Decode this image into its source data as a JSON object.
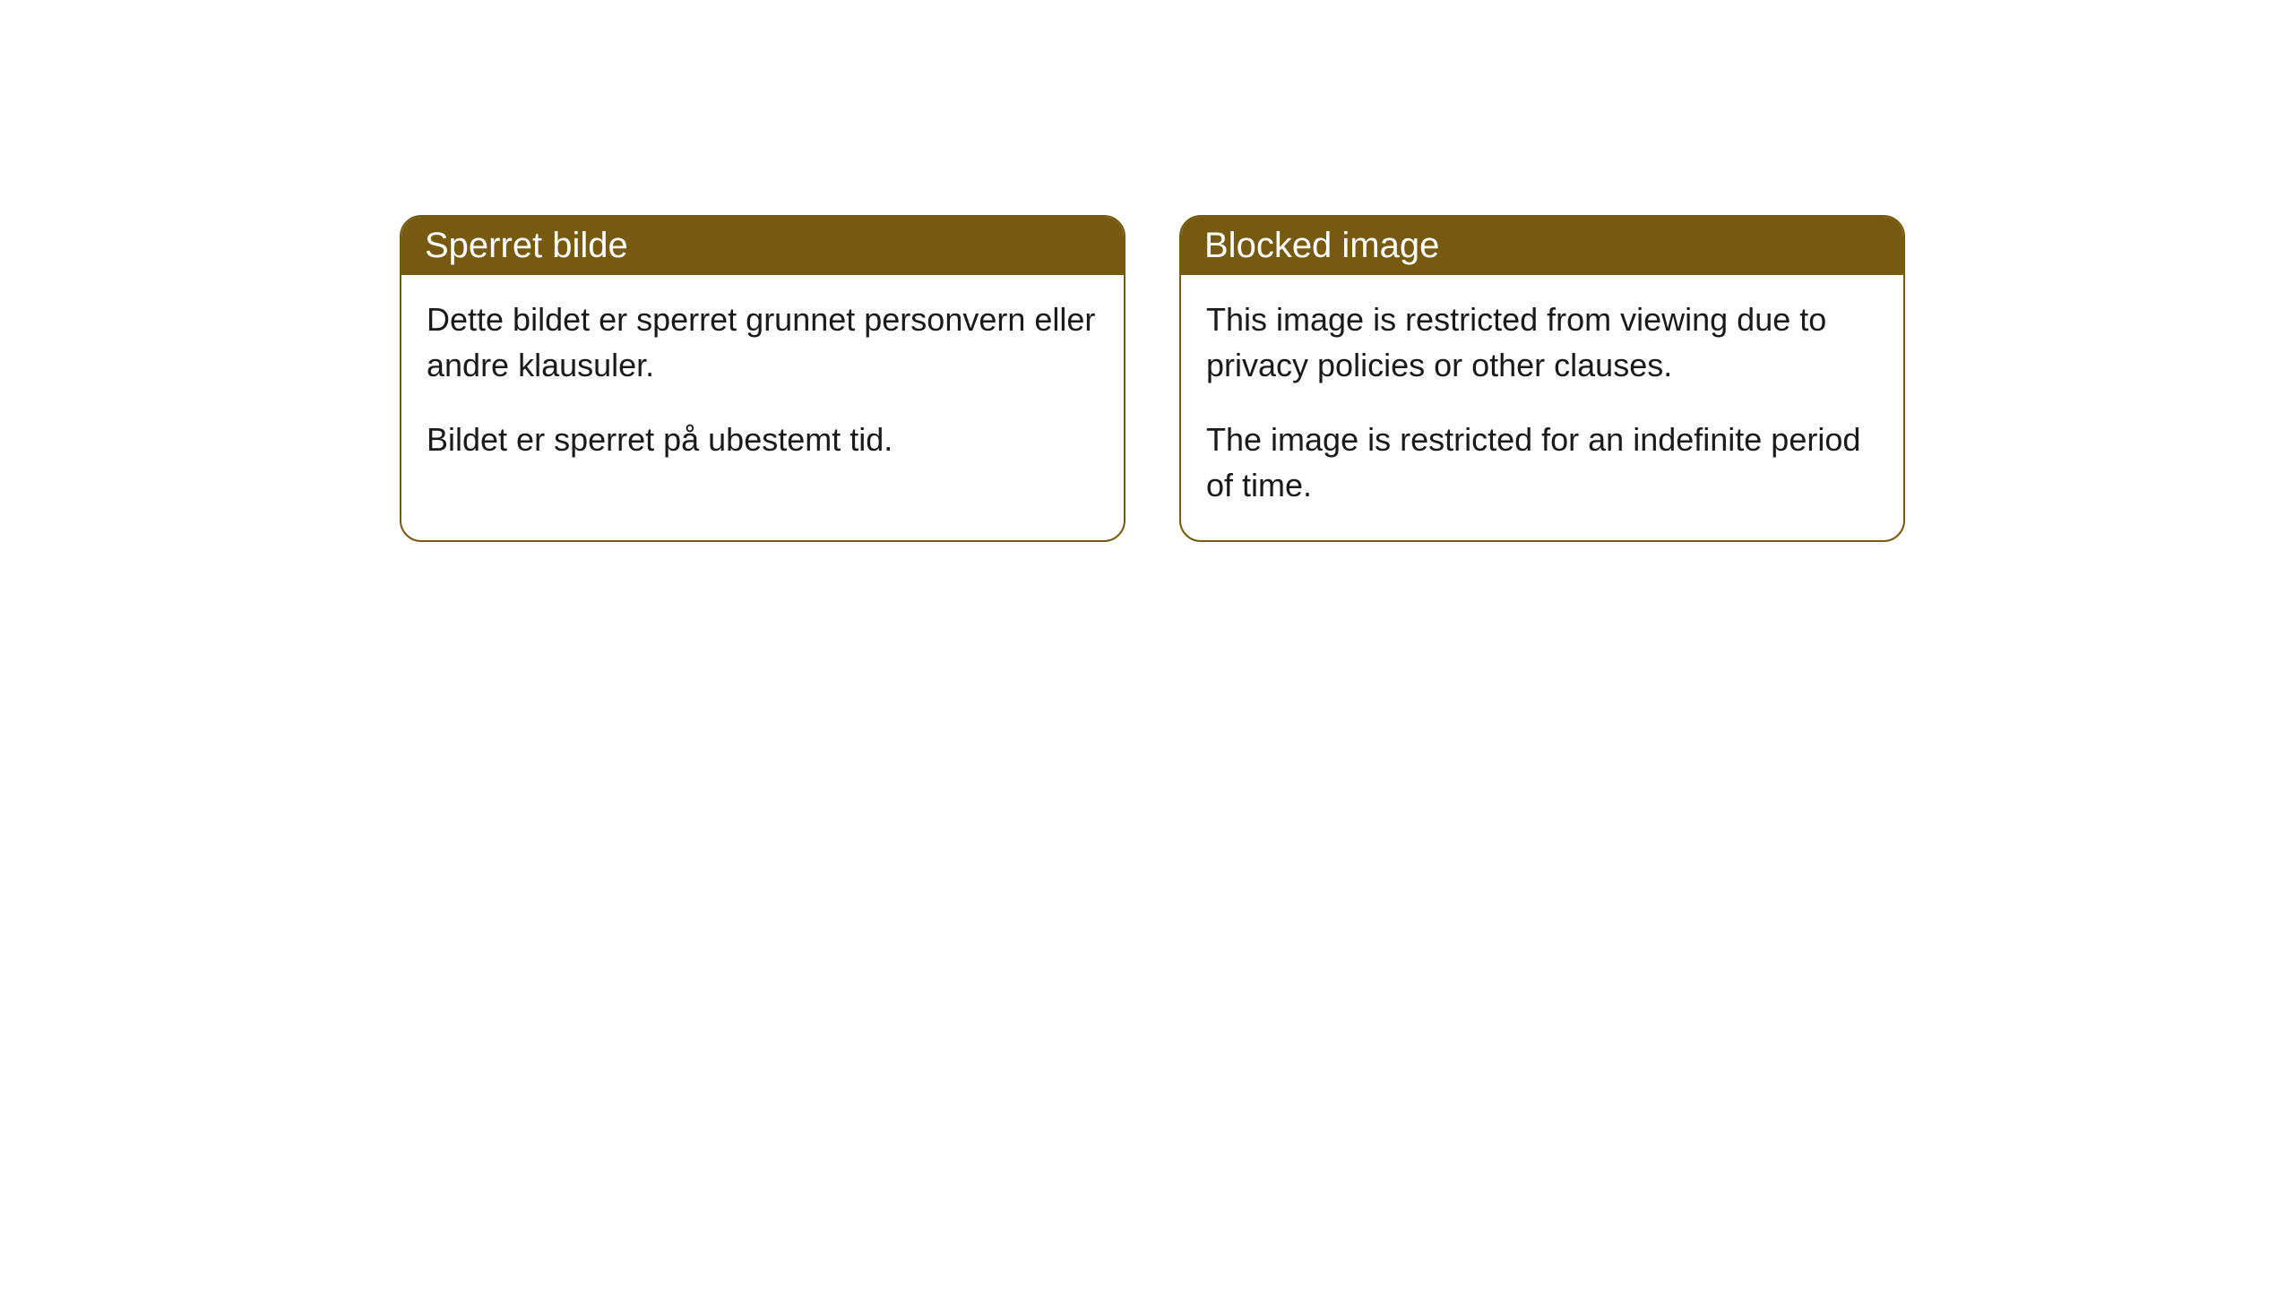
{
  "cards": [
    {
      "title": "Sperret bilde",
      "paragraph1": "Dette bildet er sperret grunnet personvern eller andre klausuler.",
      "paragraph2": "Bildet er sperret på ubestemt tid."
    },
    {
      "title": "Blocked image",
      "paragraph1": "This image is restricted from viewing due to privacy policies or other clauses.",
      "paragraph2": "The image is restricted for an indefinite period of time."
    }
  ],
  "styling": {
    "header_background": "#755a10",
    "header_text_color": "#ffffff",
    "border_color": "#755a10",
    "body_text_color": "#1a1a1a",
    "card_background": "#ffffff",
    "page_background": "#ffffff",
    "border_radius": "24px",
    "title_fontsize": 40,
    "body_fontsize": 36
  }
}
